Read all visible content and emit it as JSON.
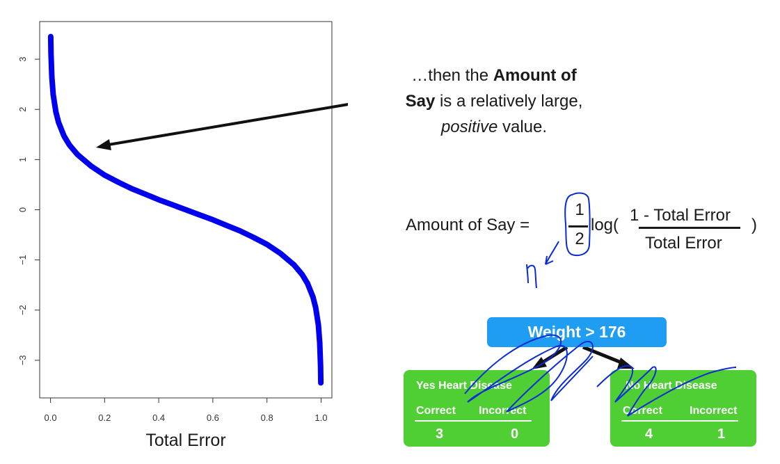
{
  "chart_data": {
    "type": "line",
    "title": "",
    "xlabel": "Total Error",
    "ylabel": "",
    "xlim": [
      -0.04,
      1.04
    ],
    "ylim": [
      -3.75,
      3.75
    ],
    "x_ticks": [
      "0.0",
      "0.2",
      "0.4",
      "0.6",
      "0.8",
      "1.0"
    ],
    "y_ticks": [
      "−3",
      "−2",
      "−1",
      "0",
      "1",
      "2",
      "3"
    ],
    "grid": false,
    "series": [
      {
        "color": "#0000ee",
        "x": [
          0.001,
          0.002,
          0.005,
          0.01,
          0.02,
          0.03,
          0.05,
          0.07,
          0.1,
          0.15,
          0.2,
          0.25,
          0.3,
          0.35,
          0.4,
          0.45,
          0.5,
          0.55,
          0.6,
          0.65,
          0.7,
          0.75,
          0.8,
          0.85,
          0.9,
          0.93,
          0.95,
          0.97,
          0.98,
          0.99,
          0.995,
          0.998,
          0.999
        ],
        "y": [
          3.45,
          3.11,
          2.65,
          2.3,
          1.95,
          1.74,
          1.47,
          1.29,
          1.1,
          0.87,
          0.69,
          0.55,
          0.42,
          0.31,
          0.2,
          0.1,
          0.0,
          -0.1,
          -0.2,
          -0.31,
          -0.42,
          -0.55,
          -0.69,
          -0.87,
          -1.1,
          -1.29,
          -1.47,
          -1.74,
          -1.95,
          -2.3,
          -2.65,
          -3.11,
          -3.45
        ]
      }
    ]
  },
  "callout": {
    "line1_prefix": "…then the ",
    "line1_bold": "Amount of",
    "line2_bold": "Say",
    "line2_rest": " is a relatively large,",
    "line3_italic": "positive",
    "line3_rest": " value."
  },
  "formula": {
    "lhs": "Amount of Say =",
    "half_numerator": "1",
    "half_denominator": "2",
    "log": "log(",
    "numerator": "1 - Total Error",
    "denominator": "Total Error",
    "close": ")"
  },
  "tree": {
    "root_label": "Weight > 176",
    "left_leaf": {
      "title": "Yes Heart Disease",
      "correct_label": "Correct",
      "incorrect_label": "Incorrect",
      "correct_value": "3",
      "incorrect_value": "0"
    },
    "right_leaf": {
      "title": "No Heart Disease",
      "correct_label": "Correct",
      "incorrect_label": "Incorrect",
      "correct_value": "4",
      "incorrect_value": "1"
    }
  },
  "colors": {
    "curve": "#0000ee",
    "root_node": "#1e9df2",
    "leaf_node": "#4fcf33",
    "ink": "#0a2bd6"
  }
}
